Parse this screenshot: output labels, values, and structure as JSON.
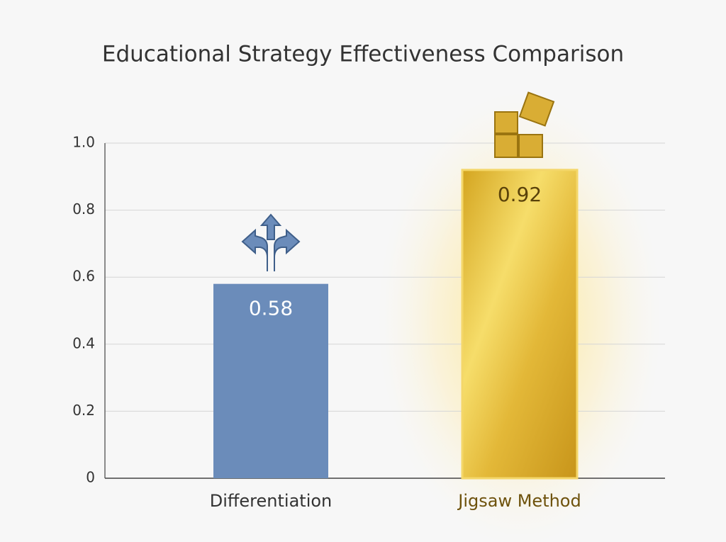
{
  "chart_data": {
    "type": "bar",
    "title": "Educational Strategy Effectiveness Comparison",
    "categories": [
      "Differentiation",
      "Jigsaw Method"
    ],
    "values": [
      0.58,
      0.92
    ],
    "colors": [
      "#6b8cba",
      "#e0b83a"
    ],
    "ylim": [
      0,
      1
    ],
    "yticks": [
      0,
      0.2,
      0.4,
      0.6,
      0.8,
      {
        "value": 1,
        "label": "1.0"
      }
    ],
    "grid": true
  }
}
